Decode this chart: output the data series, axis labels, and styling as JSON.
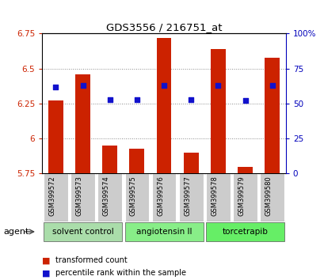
{
  "title": "GDS3556 / 216751_at",
  "samples": [
    "GSM399572",
    "GSM399573",
    "GSM399574",
    "GSM399575",
    "GSM399576",
    "GSM399577",
    "GSM399578",
    "GSM399579",
    "GSM399580"
  ],
  "bar_values": [
    6.27,
    6.46,
    5.95,
    5.93,
    6.72,
    5.9,
    6.64,
    5.8,
    6.58
  ],
  "dot_values": [
    62,
    63,
    53,
    53,
    63,
    53,
    63,
    52,
    63
  ],
  "ylim": [
    5.75,
    6.75
  ],
  "yticks": [
    5.75,
    6.0,
    6.25,
    6.5,
    6.75
  ],
  "ytick_labels": [
    "5.75",
    "6",
    "6.25",
    "6.5",
    "6.75"
  ],
  "y2lim": [
    0,
    100
  ],
  "y2ticks": [
    0,
    25,
    50,
    75,
    100
  ],
  "y2tick_labels": [
    "0",
    "25",
    "50",
    "75",
    "100%"
  ],
  "bar_color": "#cc2200",
  "dot_color": "#1111cc",
  "bar_bottom": 5.75,
  "group_defs": [
    {
      "label": "solvent control",
      "start": 0,
      "end": 2,
      "color": "#aaddaa"
    },
    {
      "label": "angiotensin II",
      "start": 3,
      "end": 5,
      "color": "#88ee88"
    },
    {
      "label": "torcetrapib",
      "start": 6,
      "end": 8,
      "color": "#66ee66"
    }
  ],
  "agent_label": "agent",
  "legend_items": [
    {
      "label": "transformed count",
      "color": "#cc2200"
    },
    {
      "label": "percentile rank within the sample",
      "color": "#1111cc"
    }
  ],
  "grid_color": "#888888",
  "ylabel_color": "#cc2200",
  "y2label_color": "#0000bb",
  "sample_bg_color": "#cccccc",
  "background_color": "#ffffff"
}
